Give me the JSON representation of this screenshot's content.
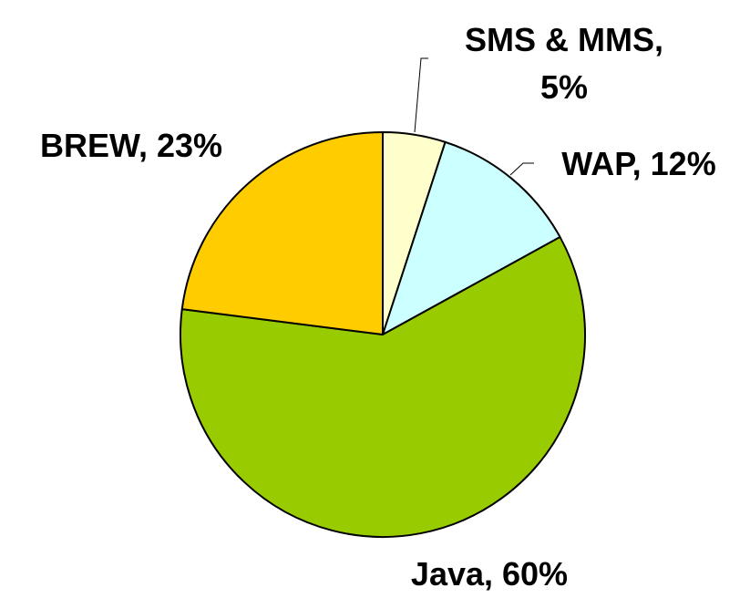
{
  "chart_data": {
    "type": "pie",
    "values": [
      5,
      12,
      60,
      23
    ],
    "value_labels": [
      "SMS & MMS, 5%",
      "WAP, 12%",
      "Java, 60%",
      "BREW, 23%"
    ],
    "colors": [
      "#ffffcc",
      "#ccffff",
      "#99cc00",
      "#ffcc00"
    ]
  }
}
